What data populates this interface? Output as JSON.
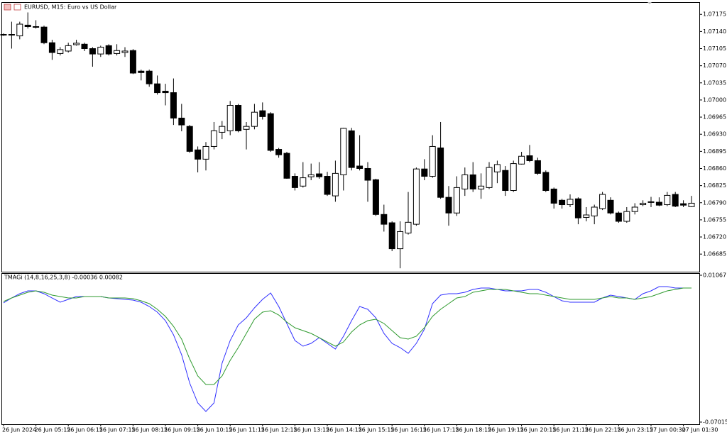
{
  "chart_data": [
    {
      "type": "candlestick",
      "title": "EURUSD, M15:  Euro vs US Dollar",
      "categories": [
        "26 Jun 2024",
        null,
        null,
        null,
        "26 Jun 05:15",
        null,
        null,
        null,
        "26 Jun 06:15",
        null,
        null,
        null,
        "26 Jun 07:15",
        null,
        null,
        null,
        "26 Jun 08:15",
        null,
        null,
        null,
        "26 Jun 09:15",
        null,
        null,
        null,
        "26 Jun 10:15",
        null,
        null,
        null,
        "26 Jun 11:15",
        null,
        null,
        null,
        "26 Jun 12:15",
        null,
        null,
        null,
        "26 Jun 13:15",
        null,
        null,
        null,
        "26 Jun 14:15",
        null,
        null,
        null,
        "26 Jun 15:15",
        null,
        null,
        null,
        "26 Jun 16:15",
        null,
        null,
        null,
        "26 Jun 17:15",
        null,
        null,
        null,
        "26 Jun 18:15",
        null,
        null,
        null,
        "26 Jun 19:15",
        null,
        null,
        null,
        "26 Jun 20:15",
        null,
        null,
        null,
        "26 Jun 21:15",
        null,
        null,
        null,
        "26 Jun 22:15",
        null,
        null,
        null,
        "26 Jun 23:15",
        null,
        null,
        null,
        "27 Jun 00:30",
        null,
        null,
        null,
        "27 Jun 01:30",
        null
      ],
      "open": [
        1.07134,
        1.07133,
        1.07131,
        1.07153,
        1.0715,
        1.07149,
        1.07117,
        1.07095,
        1.071,
        1.07113,
        1.07114,
        1.07105,
        1.07094,
        1.07111,
        1.07095,
        1.07097,
        1.07101,
        1.07059,
        1.07059,
        1.07033,
        1.07018,
        1.07015,
        1.06963,
        1.06946,
        1.06898,
        1.06879,
        1.06905,
        1.06934,
        1.06937,
        1.06989,
        1.0694,
        1.06946,
        1.06978,
        1.06972,
        1.06899,
        1.06891,
        1.06844,
        1.06824,
        1.06843,
        1.06849,
        1.06844,
        1.06804,
        1.06847,
        1.06937,
        1.06865,
        1.0686,
        1.06837,
        1.06766,
        1.06749,
        1.06696,
        1.06728,
        1.06746,
        1.06859,
        1.06844,
        1.06902,
        1.06801,
        1.06769,
        1.06818,
        1.06847,
        1.06818,
        1.06821,
        1.06853,
        1.06856,
        1.06815,
        1.06869,
        1.06886,
        1.06876,
        1.06852,
        1.06818,
        1.06795,
        1.06786,
        1.06798,
        1.0676,
        1.06763,
        1.06778,
        1.06795,
        1.06769,
        1.06752,
        1.06772,
        1.06786,
        1.06792,
        1.06791,
        1.06786,
        1.06807,
        1.06788,
        1.06782
      ],
      "high": [
        1.07136,
        1.0716,
        1.0716,
        1.07179,
        1.07163,
        1.07152,
        1.07123,
        1.07108,
        1.07117,
        1.07123,
        1.07117,
        1.07108,
        1.07111,
        1.07114,
        1.07114,
        1.07108,
        1.07104,
        1.07062,
        1.07062,
        1.0705,
        1.07033,
        1.07044,
        1.06992,
        1.06949,
        1.06905,
        1.06914,
        1.06955,
        1.06957,
        1.06998,
        1.06992,
        1.06955,
        1.06992,
        1.06995,
        1.06975,
        1.06902,
        1.06894,
        1.0685,
        1.06873,
        1.0687,
        1.06873,
        1.06853,
        1.06876,
        1.06943,
        1.06943,
        1.06928,
        1.06873,
        1.06839,
        1.06786,
        1.06752,
        1.06752,
        1.06812,
        1.06862,
        1.06879,
        1.06928,
        1.06955,
        1.06824,
        1.06844,
        1.06862,
        1.06873,
        1.0685,
        1.06873,
        1.06876,
        1.06865,
        1.06876,
        1.06894,
        1.06908,
        1.06882,
        1.06856,
        1.06821,
        1.06798,
        1.06807,
        1.06801,
        1.06781,
        1.06786,
        1.06812,
        1.06801,
        1.06772,
        1.06781,
        1.06789,
        1.06795,
        1.06802,
        1.06801,
        1.06812,
        1.06812,
        1.06795,
        1.06804
      ],
      "low": [
        1.07131,
        1.07105,
        1.07124,
        1.07146,
        1.07146,
        1.07114,
        1.07082,
        1.07091,
        1.07097,
        1.07111,
        1.071,
        1.07068,
        1.07088,
        1.07091,
        1.07091,
        1.07088,
        1.07053,
        1.0704,
        1.07027,
        1.07011,
        1.06989,
        1.06949,
        1.06936,
        1.06892,
        1.06852,
        1.06856,
        1.06899,
        1.0692,
        1.06928,
        1.06934,
        1.06899,
        1.0694,
        1.0696,
        1.06894,
        1.06882,
        1.06839,
        1.06815,
        1.06821,
        1.06836,
        1.06839,
        1.06804,
        1.06792,
        1.06815,
        1.06856,
        1.06856,
        1.06792,
        1.06763,
        1.06731,
        1.06691,
        1.06656,
        1.06725,
        1.06743,
        1.06836,
        1.06841,
        1.06798,
        1.06743,
        1.06763,
        1.06804,
        1.06812,
        1.06798,
        1.06818,
        1.0683,
        1.06804,
        1.06812,
        1.06868,
        1.06873,
        1.06847,
        1.06812,
        1.06778,
        1.06778,
        1.06781,
        1.06746,
        1.06752,
        1.06746,
        1.06775,
        1.06766,
        1.06749,
        1.06749,
        1.06766,
        1.06783,
        1.06781,
        1.06783,
        1.06783,
        1.06781,
        1.06781,
        1.06781
      ],
      "close": [
        1.07133,
        1.07134,
        1.07155,
        1.0715,
        1.07149,
        1.07117,
        1.07097,
        1.07103,
        1.07111,
        1.07116,
        1.07105,
        1.07094,
        1.07108,
        1.07094,
        1.07101,
        1.071,
        1.07055,
        1.07056,
        1.07033,
        1.07015,
        1.07015,
        1.06963,
        1.06949,
        1.06895,
        1.06879,
        1.06905,
        1.06937,
        1.06946,
        1.06989,
        1.06937,
        1.06946,
        1.06975,
        1.06966,
        1.06897,
        1.06888,
        1.0684,
        1.06821,
        1.06841,
        1.06847,
        1.06843,
        1.06807,
        1.0685,
        1.06942,
        1.06862,
        1.0686,
        1.06836,
        1.06766,
        1.06746,
        1.06696,
        1.06731,
        1.0675,
        1.06859,
        1.06844,
        1.06905,
        1.06801,
        1.06769,
        1.06821,
        1.06847,
        1.06818,
        1.06824,
        1.06862,
        1.06868,
        1.06815,
        1.0687,
        1.06885,
        1.06876,
        1.0685,
        1.06815,
        1.06789,
        1.06786,
        1.06797,
        1.06759,
        1.06765,
        1.06781,
        1.06807,
        1.06769,
        1.06752,
        1.06772,
        1.06781,
        1.06789,
        1.06791,
        1.06785,
        1.06805,
        1.06783,
        1.06785,
        1.06789
      ],
      "up_color": "#ffffff",
      "down_color": "#000000",
      "ylim": [
        1.06649,
        1.072
      ],
      "yticks": [
        1.07175,
        {
          "value": 1.0714,
          "label": "1.07140"
        },
        1.07105,
        {
          "value": 1.0707,
          "label": "1.07070"
        },
        1.07035,
        {
          "value": 1.07,
          "label": "1.07000"
        },
        1.06965,
        {
          "value": 1.0693,
          "label": "1.06930"
        },
        1.06895,
        {
          "value": 1.0686,
          "label": "1.06860"
        },
        1.06825,
        {
          "value": 1.0679,
          "label": "1.06790"
        },
        1.06755,
        {
          "value": 1.0672,
          "label": "1.06720"
        },
        1.06685
      ]
    },
    {
      "type": "line",
      "title": "TMAGi (14,8,16,25,3,8) -0.00036 0.00082",
      "series": [
        {
          "color": "#3030ff",
          "values": [
            -0.00456,
            -0.00183,
            0.00052,
            0.00208,
            0.00208,
            0.00052,
            -0.00183,
            -0.00417,
            -0.00261,
            -0.00105,
            -0.00105,
            -0.00105,
            -0.00105,
            -0.00183,
            -0.00222,
            -0.00261,
            -0.003,
            -0.00417,
            -0.00651,
            -0.00964,
            -0.01432,
            -0.02213,
            -0.03307,
            -0.04869,
            -0.05962,
            -0.06431,
            -0.05962,
            -0.03775,
            -0.02526,
            -0.01667,
            -0.01276,
            -0.00729,
            -0.00261,
            0.00091,
            -0.00651,
            -0.01588,
            -0.02526,
            -0.02838,
            -0.02682,
            -0.02369,
            -0.02682,
            -0.02994,
            -0.02291,
            -0.01432,
            -0.00651,
            -0.00807,
            -0.01276,
            -0.02135,
            -0.02682,
            -0.02916,
            -0.03229,
            -0.02682,
            -0.01901,
            -0.00495,
            -0.00026,
            0.00052,
            0.00052,
            0.0013,
            0.00286,
            0.00364,
            0.00364,
            0.00286,
            0.00208,
            0.00208,
            0.00208,
            0.00286,
            0.00286,
            0.0013,
            -0.00105,
            -0.00339,
            -0.00417,
            -0.00417,
            -0.00417,
            -0.00417,
            -0.00183,
            -0.00026,
            -0.00105,
            -0.00183,
            -0.00261,
            0.00052,
            0.00208,
            0.00442,
            0.00442,
            0.00364,
            0.00364,
            0.00364
          ]
        },
        {
          "color": "#2e9a2e",
          "values": [
            -0.00378,
            -0.00183,
            -0.00026,
            0.0013,
            0.00208,
            0.0013,
            -0.00026,
            -0.00105,
            -0.00183,
            -0.00183,
            -0.00105,
            -0.00105,
            -0.00105,
            -0.00183,
            -0.00183,
            -0.00183,
            -0.00222,
            -0.00339,
            -0.00495,
            -0.00807,
            -0.01198,
            -0.01745,
            -0.02448,
            -0.03541,
            -0.04478,
            -0.04947,
            -0.04947,
            -0.04478,
            -0.03619,
            -0.02916,
            -0.02135,
            -0.01354,
            -0.00964,
            -0.00886,
            -0.0112,
            -0.0151,
            -0.01823,
            -0.01979,
            -0.02135,
            -0.02369,
            -0.02604,
            -0.02838,
            -0.02604,
            -0.02057,
            -0.01667,
            -0.01432,
            -0.01354,
            -0.01588,
            -0.01979,
            -0.02369,
            -0.02448,
            -0.02291,
            -0.01823,
            -0.01198,
            -0.00807,
            -0.00495,
            -0.00183,
            -0.00105,
            0.0013,
            0.00208,
            0.00286,
            0.00286,
            0.00286,
            0.00208,
            0.0013,
            0.00052,
            0.00052,
            -0.00026,
            -0.00105,
            -0.00183,
            -0.00261,
            -0.00261,
            -0.00261,
            -0.00261,
            -0.00183,
            -0.00105,
            -0.00183,
            -0.00183,
            -0.00261,
            -0.00183,
            -0.00105,
            0.00052,
            0.00208,
            0.00286,
            0.00364,
            0.00364
          ]
        }
      ],
      "ylim": [
        -0.07133,
        0.01145
      ],
      "yticks": [
        0.01067,
        -0.07015
      ]
    }
  ]
}
